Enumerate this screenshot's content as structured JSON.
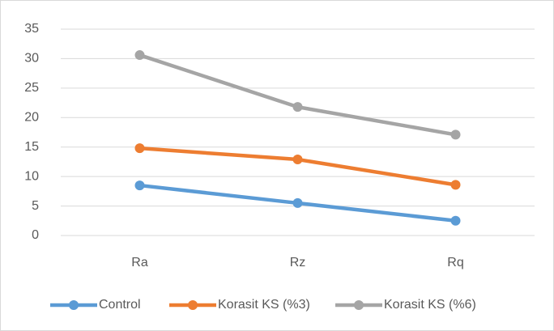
{
  "chart_data": {
    "type": "line",
    "categories": [
      "Ra",
      "Rz",
      "Rq"
    ],
    "series": [
      {
        "name": "Control",
        "color": "#5b9bd5",
        "values": [
          8.5,
          5.5,
          2.5
        ]
      },
      {
        "name": "Korasit KS (%3)",
        "color": "#ed7d31",
        "values": [
          14.8,
          12.9,
          8.6
        ]
      },
      {
        "name": "Korasit KS (%6)",
        "color": "#a5a5a5",
        "values": [
          30.6,
          21.8,
          17.1
        ]
      }
    ],
    "ylim": [
      0,
      35
    ],
    "yticks": [
      0,
      5,
      10,
      15,
      20,
      25,
      30,
      35
    ],
    "grid": true,
    "legend": "bottom"
  }
}
